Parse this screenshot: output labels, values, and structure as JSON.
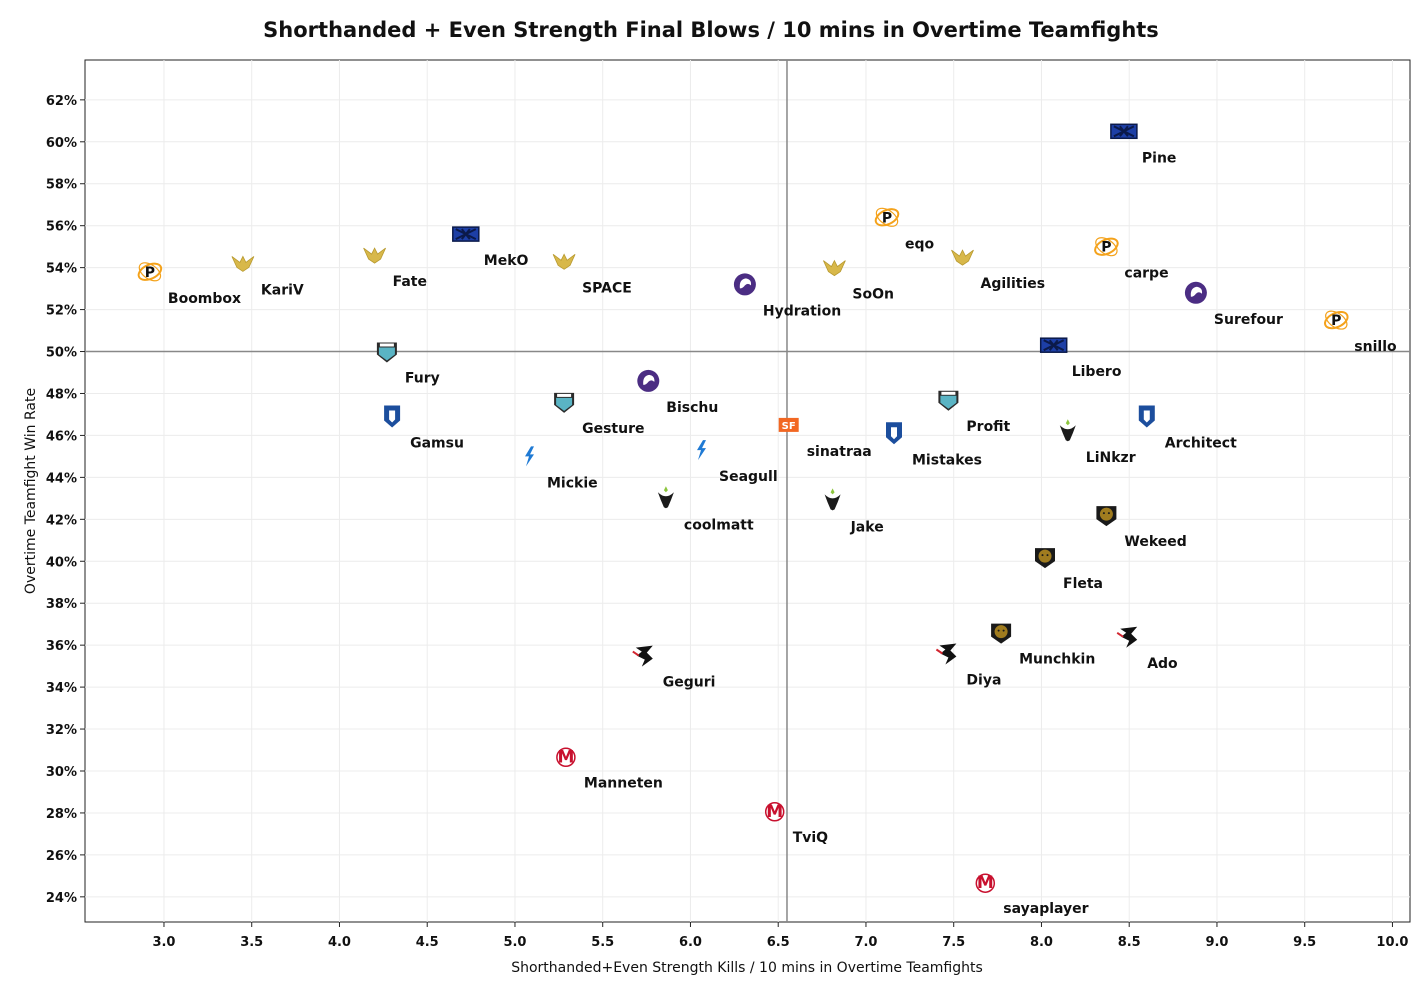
{
  "chart_data": {
    "type": "scatter",
    "title": "Shorthanded + Even Strength Final Blows / 10 mins in Overtime Teamfights",
    "xlabel": "Shorthanded+Even Strength Kills / 10 mins in Overtime Teamfights",
    "ylabel": "Overtime Teamfight Win Rate",
    "xlim": [
      2.55,
      10.1
    ],
    "ylim": [
      0.228,
      0.639
    ],
    "x_ticks": [
      3.0,
      3.5,
      4.0,
      4.5,
      5.0,
      5.5,
      6.0,
      6.5,
      7.0,
      7.5,
      8.0,
      8.5,
      9.0,
      9.5,
      10.0
    ],
    "x_tick_labels": [
      "3.0",
      "3.5",
      "4.0",
      "4.5",
      "5.0",
      "5.5",
      "6.0",
      "6.5",
      "7.0",
      "7.5",
      "8.0",
      "8.5",
      "9.0",
      "9.5",
      "10.0"
    ],
    "y_ticks": [
      0.24,
      0.26,
      0.28,
      0.3,
      0.32,
      0.34,
      0.36,
      0.38,
      0.4,
      0.42,
      0.44,
      0.46,
      0.48,
      0.5,
      0.52,
      0.54,
      0.56,
      0.58,
      0.6,
      0.62
    ],
    "y_tick_labels": [
      "24%",
      "26%",
      "28%",
      "30%",
      "32%",
      "34%",
      "36%",
      "38%",
      "40%",
      "42%",
      "44%",
      "46%",
      "48%",
      "50%",
      "52%",
      "54%",
      "56%",
      "58%",
      "60%",
      "62%"
    ],
    "reference_lines": {
      "x": 6.55,
      "y": 0.5
    },
    "grid": true,
    "team_colors": {
      "philadelphia": "#f4a21b",
      "valiant": "#d8b84a",
      "excelsior": "#1d3fa6",
      "gladiators": "#4b2d83",
      "spitfire": "#5ab4c4",
      "uprising": "#1c4e9d",
      "fuel": "#1f7ad4",
      "outlaws": "#8dc63f",
      "shock": "#f26722",
      "dragons": "#d22630",
      "dynasty": "#a07c1f",
      "mayhem": "#c8102e"
    },
    "points": [
      {
        "name": "Boombox",
        "x": 2.92,
        "y": 0.538,
        "team": "philadelphia",
        "icon": "fusion-p-icon"
      },
      {
        "name": "KariV",
        "x": 3.45,
        "y": 0.542,
        "team": "valiant",
        "icon": "valiant-wings-icon"
      },
      {
        "name": "Fate",
        "x": 4.2,
        "y": 0.546,
        "team": "valiant",
        "icon": "valiant-wings-icon"
      },
      {
        "name": "MekO",
        "x": 4.72,
        "y": 0.556,
        "team": "excelsior",
        "icon": "excelsior-x-icon"
      },
      {
        "name": "SPACE",
        "x": 5.28,
        "y": 0.543,
        "team": "valiant",
        "icon": "valiant-wings-icon"
      },
      {
        "name": "Hydration",
        "x": 6.31,
        "y": 0.532,
        "team": "gladiators",
        "icon": "gladiators-lion-icon"
      },
      {
        "name": "Pine",
        "x": 8.47,
        "y": 0.605,
        "team": "excelsior",
        "icon": "excelsior-x-icon"
      },
      {
        "name": "eqo",
        "x": 7.12,
        "y": 0.564,
        "team": "philadelphia",
        "icon": "fusion-p-icon"
      },
      {
        "name": "SoOn",
        "x": 6.82,
        "y": 0.54,
        "team": "valiant",
        "icon": "valiant-wings-icon"
      },
      {
        "name": "Agilities",
        "x": 7.55,
        "y": 0.545,
        "team": "valiant",
        "icon": "valiant-wings-icon"
      },
      {
        "name": "carpe",
        "x": 8.37,
        "y": 0.55,
        "team": "philadelphia",
        "icon": "fusion-p-icon"
      },
      {
        "name": "Surefour",
        "x": 8.88,
        "y": 0.528,
        "team": "gladiators",
        "icon": "gladiators-lion-icon"
      },
      {
        "name": "snillo",
        "x": 9.68,
        "y": 0.515,
        "team": "philadelphia",
        "icon": "fusion-p-icon"
      },
      {
        "name": "Fury",
        "x": 4.27,
        "y": 0.5,
        "team": "spitfire",
        "icon": "spitfire-shield-icon"
      },
      {
        "name": "Gamsu",
        "x": 4.3,
        "y": 0.469,
        "team": "uprising",
        "icon": "uprising-b-icon"
      },
      {
        "name": "Gesture",
        "x": 5.28,
        "y": 0.476,
        "team": "spitfire",
        "icon": "spitfire-shield-icon"
      },
      {
        "name": "Bischu",
        "x": 5.76,
        "y": 0.486,
        "team": "gladiators",
        "icon": "gladiators-lion-icon"
      },
      {
        "name": "Mickie",
        "x": 5.08,
        "y": 0.45,
        "team": "fuel",
        "icon": "fuel-bolt-icon"
      },
      {
        "name": "Seagull",
        "x": 6.06,
        "y": 0.453,
        "team": "fuel",
        "icon": "fuel-bolt-icon"
      },
      {
        "name": "coolmatt",
        "x": 5.86,
        "y": 0.43,
        "team": "outlaws",
        "icon": "outlaws-bull-icon"
      },
      {
        "name": "sinatraa",
        "x": 6.56,
        "y": 0.465,
        "team": "shock",
        "icon": "shock-sf-icon"
      },
      {
        "name": "Jake",
        "x": 6.81,
        "y": 0.429,
        "team": "outlaws",
        "icon": "outlaws-bull-icon"
      },
      {
        "name": "Mistakes",
        "x": 7.16,
        "y": 0.461,
        "team": "uprising",
        "icon": "uprising-b-icon"
      },
      {
        "name": "Profit",
        "x": 7.47,
        "y": 0.477,
        "team": "spitfire",
        "icon": "spitfire-shield-icon"
      },
      {
        "name": "Libero",
        "x": 8.07,
        "y": 0.503,
        "team": "excelsior",
        "icon": "excelsior-x-icon"
      },
      {
        "name": "LiNkzr",
        "x": 8.15,
        "y": 0.462,
        "team": "outlaws",
        "icon": "outlaws-bull-icon"
      },
      {
        "name": "Architect",
        "x": 8.6,
        "y": 0.469,
        "team": "uprising",
        "icon": "uprising-b-icon"
      },
      {
        "name": "Wekeed",
        "x": 8.37,
        "y": 0.422,
        "team": "dynasty",
        "icon": "dynasty-tiger-icon"
      },
      {
        "name": "Fleta",
        "x": 8.02,
        "y": 0.402,
        "team": "dynasty",
        "icon": "dynasty-tiger-icon"
      },
      {
        "name": "Munchkin",
        "x": 7.77,
        "y": 0.366,
        "team": "dynasty",
        "icon": "dynasty-tiger-icon"
      },
      {
        "name": "Ado",
        "x": 8.5,
        "y": 0.364,
        "team": "dragons",
        "icon": "dragons-s-icon"
      },
      {
        "name": "Diya",
        "x": 7.47,
        "y": 0.356,
        "team": "dragons",
        "icon": "dragons-s-icon"
      },
      {
        "name": "Geguri",
        "x": 5.74,
        "y": 0.355,
        "team": "dragons",
        "icon": "dragons-s-icon"
      },
      {
        "name": "Manneten",
        "x": 5.29,
        "y": 0.307,
        "team": "mayhem",
        "icon": "mayhem-m-icon"
      },
      {
        "name": "TviQ",
        "x": 6.48,
        "y": 0.281,
        "team": "mayhem",
        "icon": "mayhem-m-icon"
      },
      {
        "name": "sayaplayer",
        "x": 7.68,
        "y": 0.247,
        "team": "mayhem",
        "icon": "mayhem-m-icon"
      }
    ]
  }
}
